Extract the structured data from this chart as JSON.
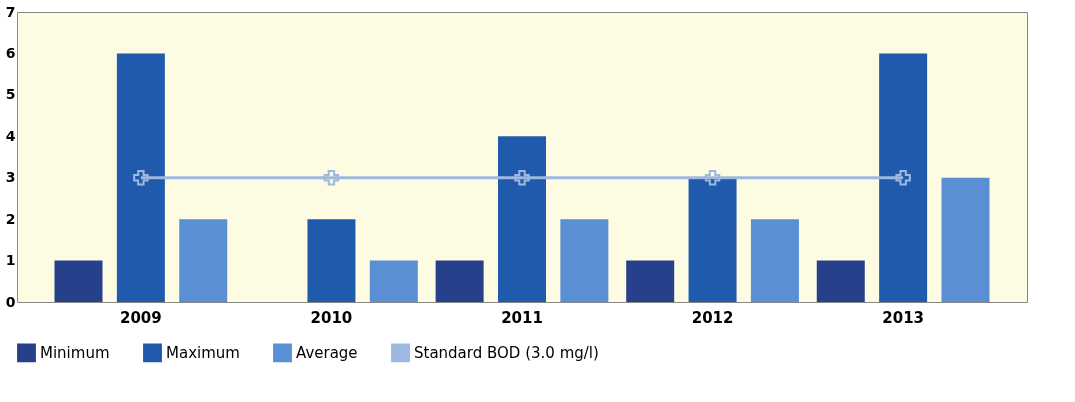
{
  "chart_data": {
    "type": "bar",
    "categories": [
      "2009",
      "2010",
      "2011",
      "2012",
      "2013"
    ],
    "series": [
      {
        "name": "Minimum",
        "color": "#27408b",
        "values": [
          1,
          null,
          1,
          1,
          1
        ]
      },
      {
        "name": "Maximum",
        "color": "#1f5aad",
        "values": [
          6,
          2,
          4,
          3,
          6
        ]
      },
      {
        "name": "Average",
        "color": "#5b8fd4",
        "values": [
          2,
          1,
          2,
          2,
          3
        ]
      },
      {
        "name": "Standard BOD (3.0 mg/l)",
        "type": "line",
        "marker": "cross",
        "color": "#9db9df",
        "values": [
          3,
          3,
          3,
          3,
          3
        ]
      }
    ],
    "ylim": [
      0,
      7
    ],
    "yticks": [
      0,
      1,
      2,
      3,
      4,
      5,
      6,
      7
    ],
    "grid": false,
    "legend": "bottom"
  }
}
